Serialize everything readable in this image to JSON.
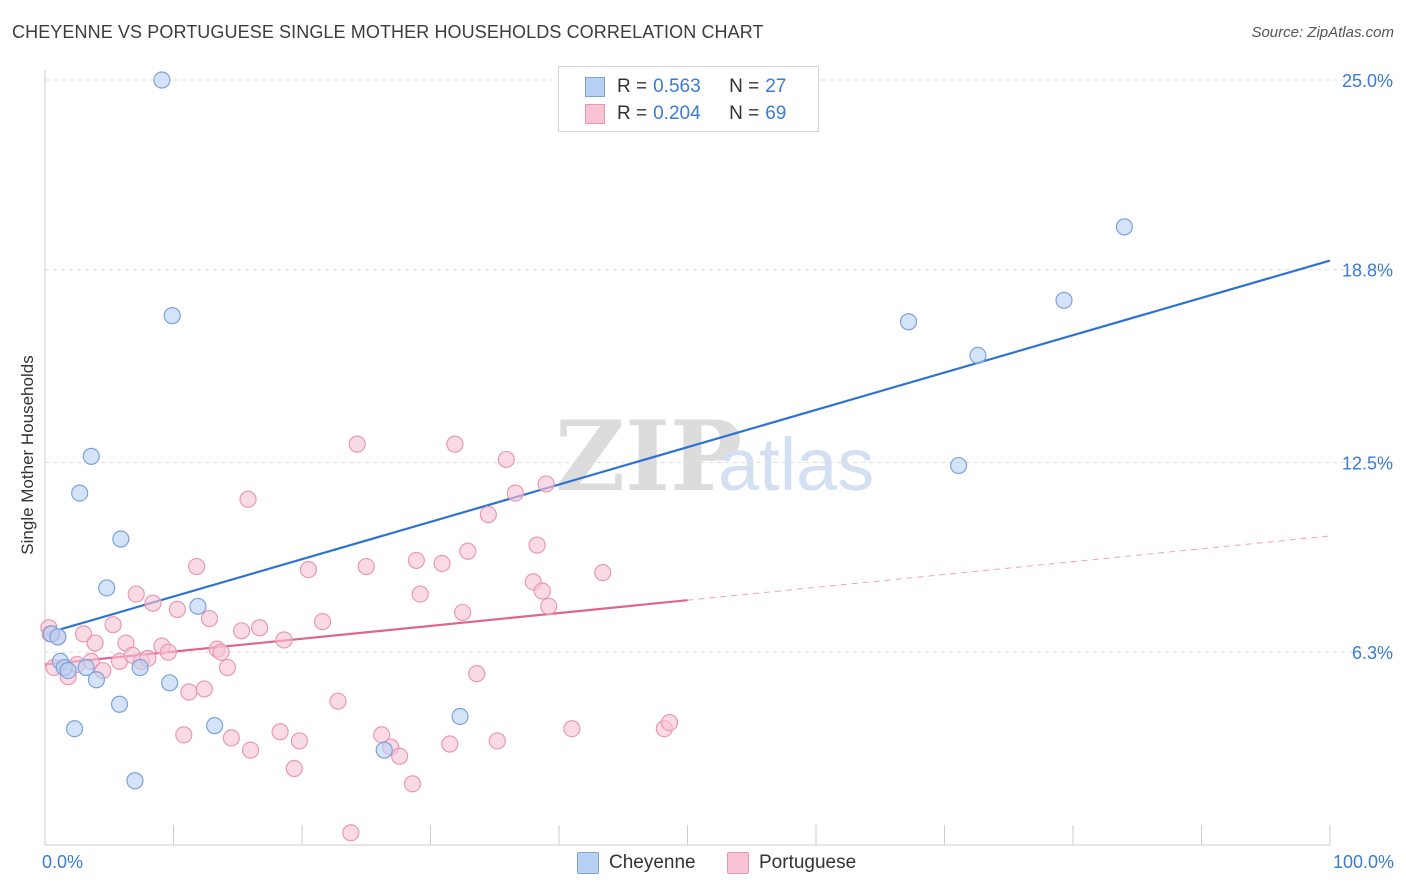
{
  "title": "CHEYENNE VS PORTUGUESE SINGLE MOTHER HOUSEHOLDS CORRELATION CHART",
  "source": "Source: ZipAtlas.com",
  "watermark": {
    "zip": "ZIP",
    "atlas": "atlas"
  },
  "legend": {
    "r_label": "R =",
    "n_label": "N =",
    "rows": [
      {
        "r": "0.563",
        "n": "27"
      },
      {
        "r": "0.204",
        "n": "69"
      }
    ]
  },
  "chart_data": {
    "type": "scatter",
    "title": "CHEYENNE VS PORTUGUESE SINGLE MOTHER HOUSEHOLDS CORRELATION CHART",
    "xlabel": "",
    "ylabel": "Single Mother Households",
    "xlim": [
      0,
      100
    ],
    "ylim": [
      0,
      25.5
    ],
    "x_tick_labels": [
      "0.0%",
      "100.0%"
    ],
    "y_ticks": [
      {
        "value": 6.3,
        "label": "6.3%"
      },
      {
        "value": 12.5,
        "label": "12.5%"
      },
      {
        "value": 18.8,
        "label": "18.8%"
      },
      {
        "value": 25.0,
        "label": "25.0%"
      }
    ],
    "grid": "horizontal dashed",
    "legend_position": "top-center",
    "colors": {
      "cheyenne_fill": "#b8d1f3",
      "cheyenne_stroke": "#7aa3dc",
      "cheyenne_line": "#2f72d0",
      "portuguese_fill": "#f7c3d3",
      "portuguese_stroke": "#e998b3",
      "portuguese_line": "#e0638f",
      "tick_label": "#3a7bd5"
    },
    "series": [
      {
        "name": "Cheyenne",
        "r": 0.563,
        "n": 27,
        "trend": {
          "x": [
            0,
            100
          ],
          "y": [
            6.9,
            19.1
          ],
          "dashed_from": null
        },
        "points": [
          [
            0.5,
            6.9
          ],
          [
            1.2,
            6.0
          ],
          [
            1.5,
            5.8
          ],
          [
            1.8,
            5.7
          ],
          [
            2.3,
            3.8
          ],
          [
            2.7,
            11.5
          ],
          [
            3.2,
            5.8
          ],
          [
            3.6,
            12.7
          ],
          [
            4.0,
            5.4
          ],
          [
            5.8,
            4.6
          ],
          [
            5.9,
            10.0
          ],
          [
            4.8,
            8.4
          ],
          [
            7.0,
            2.1
          ],
          [
            7.4,
            5.8
          ],
          [
            9.1,
            25.0
          ],
          [
            9.7,
            5.3
          ],
          [
            9.9,
            17.3
          ],
          [
            11.9,
            7.8
          ],
          [
            13.2,
            3.9
          ],
          [
            26.4,
            3.1
          ],
          [
            32.3,
            4.2
          ],
          [
            67.2,
            17.1
          ],
          [
            71.1,
            12.4
          ],
          [
            72.6,
            16.0
          ],
          [
            79.3,
            17.8
          ],
          [
            84.0,
            20.2
          ],
          [
            1.0,
            6.8
          ]
        ]
      },
      {
        "name": "Portuguese",
        "r": 0.204,
        "n": 69,
        "trend": {
          "x": [
            0,
            100
          ],
          "y": [
            5.9,
            10.1
          ],
          "dashed_from": 50
        },
        "points": [
          [
            0.3,
            7.1
          ],
          [
            0.7,
            5.8
          ],
          [
            1.0,
            6.8
          ],
          [
            1.8,
            5.5
          ],
          [
            2.5,
            5.9
          ],
          [
            3.0,
            6.9
          ],
          [
            3.6,
            6.0
          ],
          [
            3.9,
            6.6
          ],
          [
            4.5,
            5.7
          ],
          [
            5.3,
            7.2
          ],
          [
            5.8,
            6.0
          ],
          [
            6.3,
            6.6
          ],
          [
            6.8,
            6.2
          ],
          [
            7.1,
            8.2
          ],
          [
            7.5,
            6.0
          ],
          [
            8.0,
            6.1
          ],
          [
            8.4,
            7.9
          ],
          [
            9.1,
            6.5
          ],
          [
            9.6,
            6.3
          ],
          [
            10.3,
            7.7
          ],
          [
            10.8,
            3.6
          ],
          [
            11.2,
            5.0
          ],
          [
            11.8,
            9.1
          ],
          [
            12.4,
            5.1
          ],
          [
            12.8,
            7.4
          ],
          [
            13.4,
            6.4
          ],
          [
            13.7,
            6.3
          ],
          [
            14.2,
            5.8
          ],
          [
            14.5,
            3.5
          ],
          [
            15.3,
            7.0
          ],
          [
            15.8,
            11.3
          ],
          [
            16.0,
            3.1
          ],
          [
            16.7,
            7.1
          ],
          [
            18.3,
            3.7
          ],
          [
            18.6,
            6.7
          ],
          [
            19.4,
            2.5
          ],
          [
            19.8,
            3.4
          ],
          [
            20.5,
            9.0
          ],
          [
            21.6,
            7.3
          ],
          [
            22.8,
            4.7
          ],
          [
            23.8,
            0.4
          ],
          [
            24.3,
            13.1
          ],
          [
            25.0,
            9.1
          ],
          [
            26.2,
            3.6
          ],
          [
            26.9,
            3.2
          ],
          [
            27.6,
            2.9
          ],
          [
            28.6,
            2.0
          ],
          [
            28.9,
            9.3
          ],
          [
            29.2,
            8.2
          ],
          [
            30.9,
            9.2
          ],
          [
            31.5,
            3.3
          ],
          [
            31.9,
            13.1
          ],
          [
            32.5,
            7.6
          ],
          [
            32.9,
            9.6
          ],
          [
            33.6,
            5.6
          ],
          [
            34.5,
            10.8
          ],
          [
            35.2,
            3.4
          ],
          [
            35.9,
            12.6
          ],
          [
            36.6,
            11.5
          ],
          [
            38.0,
            8.6
          ],
          [
            38.3,
            9.8
          ],
          [
            38.7,
            8.3
          ],
          [
            39.0,
            11.8
          ],
          [
            39.2,
            7.8
          ],
          [
            41.0,
            3.8
          ],
          [
            43.4,
            8.9
          ],
          [
            48.2,
            3.8
          ],
          [
            48.6,
            4.0
          ],
          [
            0.4,
            6.9
          ]
        ]
      }
    ]
  },
  "bottom_legend": [
    "Cheyenne",
    "Portuguese"
  ]
}
